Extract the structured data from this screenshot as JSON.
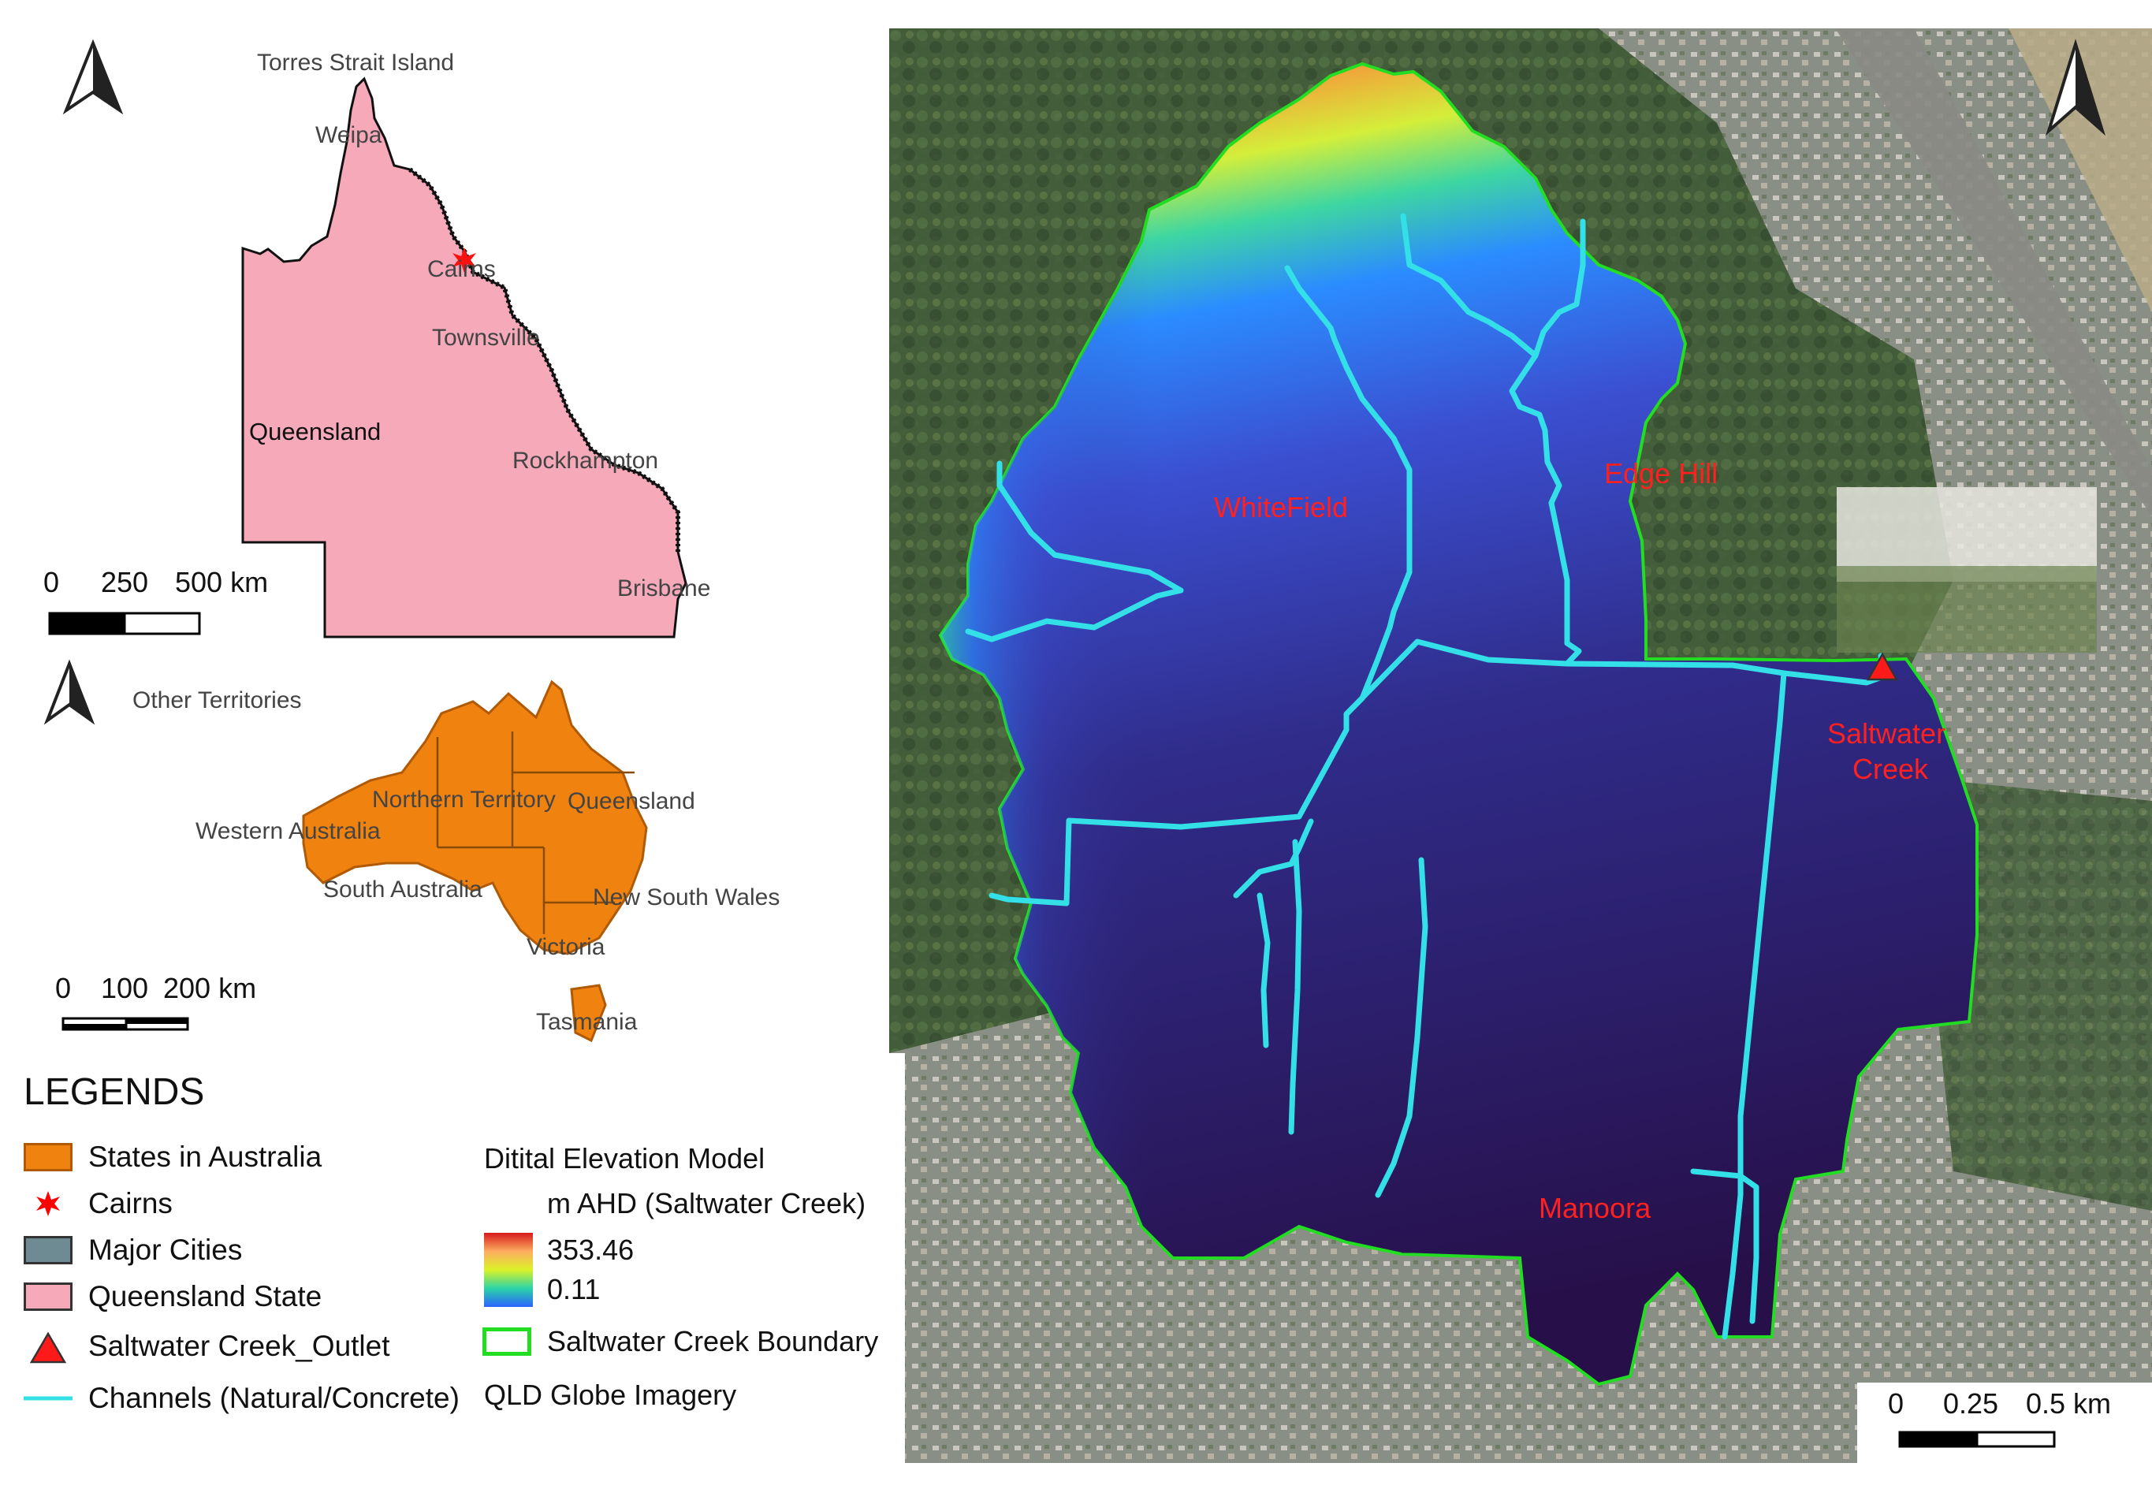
{
  "queensland_map": {
    "labels": {
      "torres": "Torres Strait Island",
      "weipa": "Weipa",
      "cairns": "Cairns",
      "townsville": "Townsville",
      "queensland": "Queensland",
      "rockhampton": "Rockhampton",
      "brisbane": "Brisbane"
    },
    "scale": {
      "t0": "0",
      "t1": "250",
      "t2": "500 km"
    },
    "colors": {
      "state_fill": "#f6a9b9",
      "coast": "#111111"
    }
  },
  "australia_map": {
    "labels": {
      "other": "Other Territories",
      "nt": "Northern Territory",
      "qld": "Queensland",
      "wa": "Western Australia",
      "sa": "South Australia",
      "nsw": "New South Wales",
      "vic": "Victoria",
      "tas": "Tasmania"
    },
    "scale": {
      "t0": "0",
      "t1": "100",
      "t2": "200 km"
    },
    "colors": {
      "fill": "#f0820f",
      "edge": "#b05a05"
    }
  },
  "legend": {
    "title": "LEGENDS",
    "items": [
      {
        "label": "States in Australia",
        "symbol": "orange-box-icon",
        "color": "#f0820f"
      },
      {
        "label": "Cairns",
        "symbol": "red-star-icon",
        "color": "#ff0000"
      },
      {
        "label": "Major Cities",
        "symbol": "grey-box-icon",
        "color": "#6e8a93"
      },
      {
        "label": "Queensland State",
        "symbol": "pink-box-icon",
        "color": "#f6a9b9"
      },
      {
        "label": "Saltwater Creek_Outlet",
        "symbol": "triangle-icon",
        "color": "#ff1a1a"
      },
      {
        "label": "Channels (Natural/Concrete)",
        "symbol": "cyan-line-icon",
        "color": "#33e0e8"
      }
    ],
    "dem_title": "Ditital Elevation Model",
    "dem_unit": "m AHD (Saltwater Creek)",
    "dem_max": "353.46",
    "dem_min": "0.11",
    "boundary": "Saltwater Creek Boundary",
    "imagery": "QLD Globe Imagery",
    "boundary_color": "#22dd22"
  },
  "main_map": {
    "labels": {
      "whitefield": "WhiteField",
      "edgehill": "Edge Hill",
      "saltwater": "Saltwater",
      "creek": "Creek",
      "manoora": "Manoora"
    },
    "scale": {
      "t0": "0",
      "t1": "0.25",
      "t2": "0.5 km"
    },
    "colors": {
      "channel": "#33e0e8",
      "label": "#ff2020"
    }
  }
}
